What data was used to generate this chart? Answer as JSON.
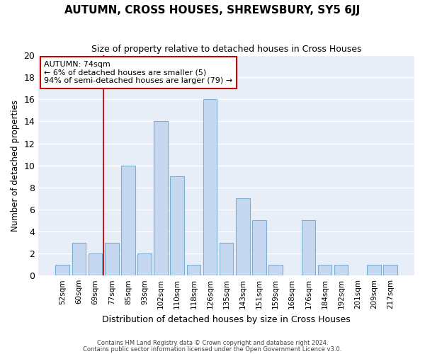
{
  "title": "AUTUMN, CROSS HOUSES, SHREWSBURY, SY5 6JJ",
  "subtitle": "Size of property relative to detached houses in Cross Houses",
  "xlabel": "Distribution of detached houses by size in Cross Houses",
  "ylabel": "Number of detached properties",
  "categories": [
    "52sqm",
    "60sqm",
    "69sqm",
    "77sqm",
    "85sqm",
    "93sqm",
    "102sqm",
    "110sqm",
    "118sqm",
    "126sqm",
    "135sqm",
    "143sqm",
    "151sqm",
    "159sqm",
    "168sqm",
    "176sqm",
    "184sqm",
    "192sqm",
    "201sqm",
    "209sqm",
    "217sqm"
  ],
  "values": [
    1,
    3,
    2,
    3,
    10,
    2,
    14,
    9,
    1,
    16,
    3,
    7,
    5,
    1,
    0,
    5,
    1,
    1,
    0,
    1,
    1
  ],
  "bar_color": "#c5d8f0",
  "bar_edgecolor": "#7aafd4",
  "vline_color": "#cc0000",
  "vline_pos": 2.5,
  "ylim": [
    0,
    20
  ],
  "yticks": [
    0,
    2,
    4,
    6,
    8,
    10,
    12,
    14,
    16,
    18,
    20
  ],
  "annotation_line1": "AUTUMN: 74sqm",
  "annotation_line2": "← 6% of detached houses are smaller (5)",
  "annotation_line3": "94% of semi-detached houses are larger (79) →",
  "annotation_box_edgecolor": "#cc0000",
  "bg_color": "#e8eef8",
  "grid_color": "#ffffff",
  "footer1": "Contains HM Land Registry data © Crown copyright and database right 2024.",
  "footer2": "Contains public sector information licensed under the Open Government Licence v3.0."
}
